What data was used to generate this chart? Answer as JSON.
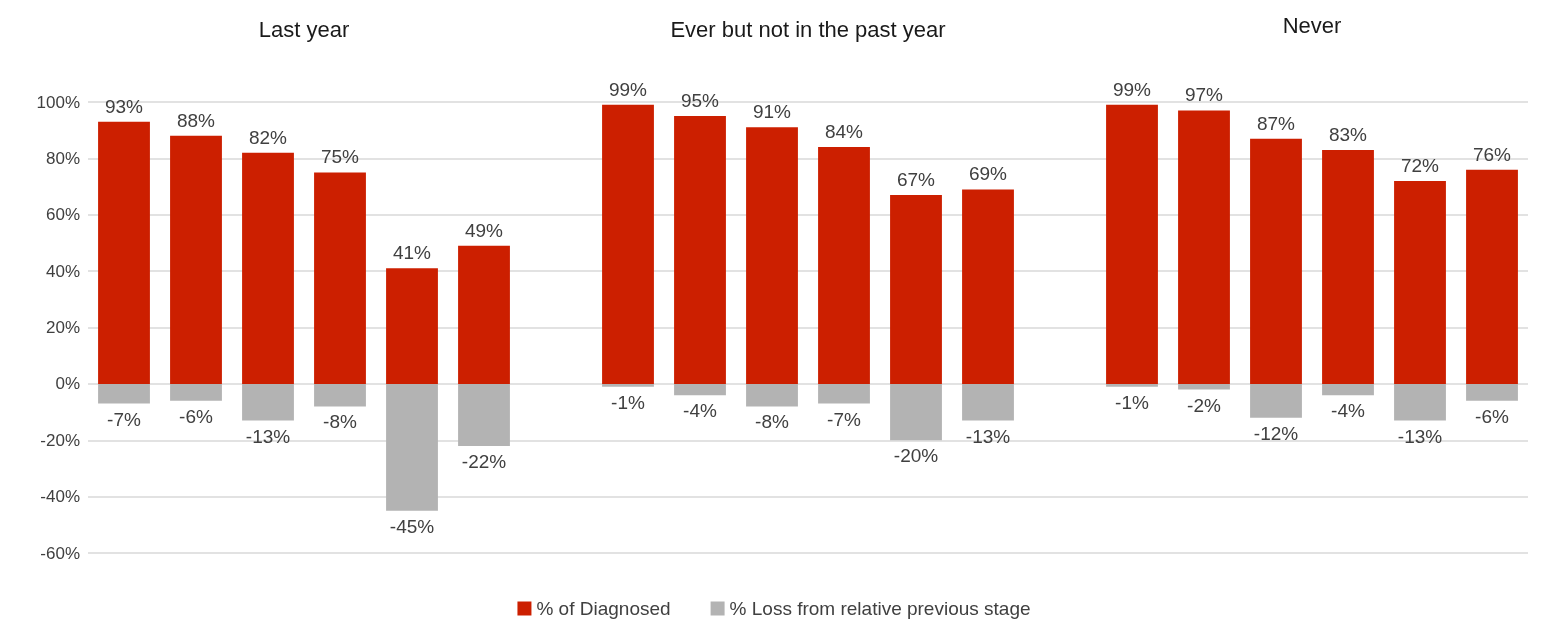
{
  "chart_data": {
    "type": "bar",
    "stacked": true,
    "categories": [
      null,
      null,
      null,
      null,
      null,
      null,
      null,
      null,
      null,
      null,
      null,
      null,
      null,
      null,
      null,
      null,
      null,
      null,
      null,
      null
    ],
    "annotations": [
      "Last year",
      "Ever but not in the past year",
      "Never"
    ],
    "series": [
      {
        "name": "% of Diagnosed",
        "color": "#cc1f00",
        "values": [
          93,
          88,
          82,
          75,
          41,
          49,
          null,
          99,
          95,
          91,
          84,
          67,
          69,
          null,
          99,
          97,
          87,
          83,
          72,
          76
        ],
        "value_labels": [
          "93%",
          "88%",
          "82%",
          "75%",
          "41%",
          "49%",
          null,
          "99%",
          "95%",
          "91%",
          "84%",
          "67%",
          "69%",
          null,
          "99%",
          "97%",
          "87%",
          "83%",
          "72%",
          "76%"
        ]
      },
      {
        "name": "% Loss from relative previous stage",
        "color": "#b3b3b3",
        "values": [
          -7,
          -6,
          -13,
          -8,
          -45,
          -22,
          null,
          -1,
          -4,
          -8,
          -7,
          -20,
          -13,
          null,
          -1,
          -2,
          -12,
          -4,
          -13,
          -6
        ],
        "value_labels": [
          "-7%",
          "-6%",
          "-13%",
          "-8%",
          "-45%",
          "-22%",
          null,
          "-1%",
          "-4%",
          "-8%",
          "-7%",
          "-20%",
          "-13%",
          null,
          "-1%",
          "-2%",
          "-12%",
          "-4%",
          "-13%",
          "-6%"
        ]
      }
    ],
    "ylim": [
      -60,
      100
    ],
    "yticks": [
      {
        "value": -60,
        "label": "-60%"
      },
      {
        "value": -40,
        "label": "-40%"
      },
      {
        "value": -20,
        "label": "-20%"
      },
      {
        "value": 0,
        "label": "0%"
      },
      {
        "value": 20,
        "label": "20%"
      },
      {
        "value": 40,
        "label": "40%"
      },
      {
        "value": 60,
        "label": "60%"
      },
      {
        "value": 80,
        "label": "80%"
      },
      {
        "value": 100,
        "label": "100%"
      }
    ],
    "grid": "y",
    "legend": "bottom"
  }
}
